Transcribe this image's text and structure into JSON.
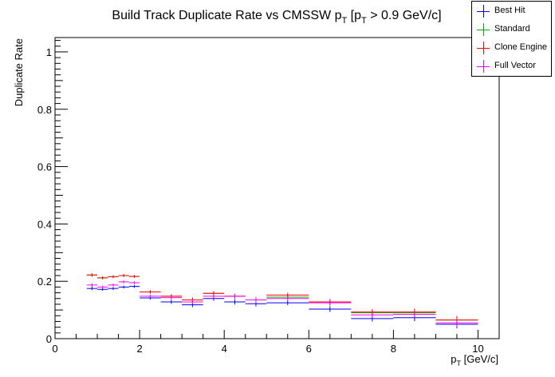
{
  "chart_data": {
    "type": "scatter",
    "title": {
      "text": "Build Track Duplicate Rate vs CMSSW p",
      "sub1": "T",
      "mid": " [p",
      "sub2": "T",
      "tail": " > 0.9 GeV/c]"
    },
    "xlabel": {
      "main": "p",
      "sub": "T",
      "unit": " [GeV/c]"
    },
    "ylabel": "Duplicate Rate",
    "xlim": [
      0,
      10.5
    ],
    "ylim": [
      0,
      1.05
    ],
    "x_ticks": [
      0,
      2,
      4,
      6,
      8,
      10
    ],
    "x_tick_labels": [
      "0",
      "2",
      "4",
      "6",
      "8",
      "10"
    ],
    "y_ticks": [
      0,
      0.2,
      0.4,
      0.6,
      0.8,
      1
    ],
    "y_tick_labels": [
      "0",
      "0.2",
      "0.4",
      "0.6",
      "0.8",
      "1"
    ],
    "grid": false,
    "legend_position": "top-right",
    "bins": [
      [
        0.75,
        1.0
      ],
      [
        1.0,
        1.25
      ],
      [
        1.25,
        1.5
      ],
      [
        1.5,
        1.75
      ],
      [
        1.75,
        2.0
      ],
      [
        2.0,
        2.5
      ],
      [
        2.5,
        3.0
      ],
      [
        3.0,
        3.5
      ],
      [
        3.5,
        4.0
      ],
      [
        4.0,
        4.5
      ],
      [
        4.5,
        5.0
      ],
      [
        5.0,
        6.0
      ],
      [
        6.0,
        7.0
      ],
      [
        7.0,
        8.0
      ],
      [
        8.0,
        9.0
      ],
      [
        9.0,
        10.0
      ]
    ],
    "series": [
      {
        "name": "Best Hit",
        "color": "#0000ff",
        "values": [
          0.175,
          0.172,
          0.175,
          0.18,
          0.182,
          0.142,
          0.128,
          0.118,
          0.14,
          0.128,
          0.122,
          0.125,
          0.103,
          0.07,
          0.073,
          0.05
        ],
        "errors": [
          0.006,
          0.005,
          0.005,
          0.005,
          0.005,
          0.006,
          0.007,
          0.008,
          0.008,
          0.009,
          0.01,
          0.008,
          0.01,
          0.01,
          0.012,
          0.014
        ]
      },
      {
        "name": "Standard",
        "color": "#00aa00",
        "values": [
          0.222,
          0.212,
          0.216,
          0.22,
          0.217,
          0.163,
          0.148,
          0.135,
          0.158,
          0.148,
          0.135,
          0.145,
          0.128,
          0.09,
          0.09,
          0.065
        ],
        "errors": [
          0.006,
          0.005,
          0.005,
          0.005,
          0.005,
          0.006,
          0.007,
          0.008,
          0.008,
          0.009,
          0.01,
          0.008,
          0.01,
          0.01,
          0.012,
          0.014
        ]
      },
      {
        "name": "Clone Engine",
        "color": "#ff0000",
        "values": [
          0.222,
          0.212,
          0.216,
          0.22,
          0.217,
          0.163,
          0.148,
          0.135,
          0.158,
          0.148,
          0.135,
          0.152,
          0.128,
          0.093,
          0.093,
          0.065
        ],
        "errors": [
          0.006,
          0.005,
          0.005,
          0.005,
          0.005,
          0.006,
          0.007,
          0.008,
          0.008,
          0.009,
          0.01,
          0.008,
          0.01,
          0.01,
          0.012,
          0.014
        ]
      },
      {
        "name": "Full Vector",
        "color": "#ff00ff",
        "values": [
          0.187,
          0.18,
          0.187,
          0.198,
          0.195,
          0.148,
          0.143,
          0.128,
          0.148,
          0.148,
          0.135,
          0.14,
          0.125,
          0.083,
          0.085,
          0.055
        ],
        "errors": [
          0.006,
          0.005,
          0.005,
          0.005,
          0.005,
          0.006,
          0.007,
          0.008,
          0.008,
          0.009,
          0.01,
          0.008,
          0.01,
          0.01,
          0.012,
          0.014
        ]
      }
    ]
  }
}
